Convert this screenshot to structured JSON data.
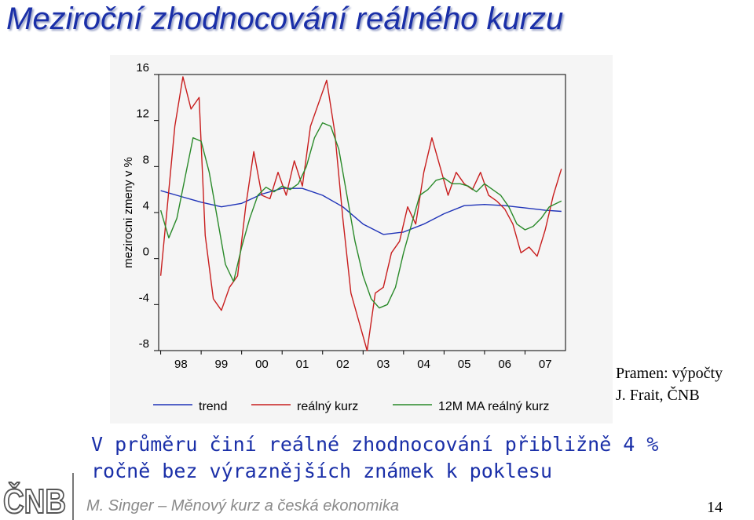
{
  "slide": {
    "title": "Meziroční zhodnocování reálného kurzu",
    "source_line1": "Pramen: výpočty",
    "source_line2": "J. Frait, ČNB",
    "body_line1": "V průměru činí reálné zhodnocování přibližně 4 %",
    "body_line2": "ročně bez výraznějších známek k poklesu",
    "footer": "M. Singer – Měnový kurz a česká ekonomika",
    "page_number": "14",
    "logo_text": "ČNB"
  },
  "chart_data": {
    "type": "line",
    "ylabel": "mezirocni zmeny v %",
    "xlabel": "",
    "title": "",
    "ylim": [
      -8,
      16
    ],
    "xlim": [
      1997.95,
      2008.0
    ],
    "yticks": [
      16,
      12,
      8,
      4,
      0,
      -4,
      -8
    ],
    "xticks": [
      "98",
      "99",
      "00",
      "01",
      "02",
      "03",
      "04",
      "05",
      "06",
      "07"
    ],
    "grid": false,
    "legend_position": "bottom",
    "series": [
      {
        "name": "trend",
        "color": "#1f33b8",
        "x": [
          1998.0,
          1998.5,
          1999.0,
          1999.5,
          2000.0,
          2000.5,
          2001.0,
          2001.5,
          2002.0,
          2002.5,
          2003.0,
          2003.5,
          2004.0,
          2004.5,
          2005.0,
          2005.5,
          2006.0,
          2006.5,
          2007.0,
          2007.5,
          2007.9
        ],
        "values": [
          5.9,
          5.4,
          4.9,
          4.5,
          4.8,
          5.6,
          6.1,
          6.1,
          5.5,
          4.5,
          3.0,
          2.1,
          2.3,
          3.0,
          3.9,
          4.6,
          4.7,
          4.6,
          4.4,
          4.2,
          4.1
        ]
      },
      {
        "name": "reálný kurz",
        "color": "#c81e1e",
        "x": [
          1998.0,
          1998.15,
          1998.35,
          1998.55,
          1998.75,
          1998.95,
          1999.1,
          1999.3,
          1999.5,
          1999.7,
          1999.9,
          2000.1,
          2000.3,
          2000.5,
          2000.7,
          2000.9,
          2001.1,
          2001.3,
          2001.5,
          2001.7,
          2001.9,
          2002.1,
          2002.3,
          2002.5,
          2002.7,
          2002.9,
          2003.1,
          2003.3,
          2003.5,
          2003.7,
          2003.9,
          2004.1,
          2004.3,
          2004.5,
          2004.7,
          2004.9,
          2005.1,
          2005.3,
          2005.5,
          2005.7,
          2005.9,
          2006.1,
          2006.3,
          2006.5,
          2006.7,
          2006.9,
          2007.1,
          2007.3,
          2007.5,
          2007.7,
          2007.9
        ],
        "values": [
          -1.5,
          4.0,
          11.5,
          15.8,
          13.0,
          14.0,
          2.0,
          -3.5,
          -4.5,
          -2.5,
          -1.5,
          4.5,
          9.3,
          5.5,
          5.2,
          7.5,
          5.5,
          8.5,
          6.3,
          11.5,
          13.5,
          15.5,
          11.0,
          3.5,
          -3.0,
          -5.5,
          -8.0,
          -3.0,
          -2.5,
          0.5,
          1.5,
          4.5,
          3.0,
          7.5,
          10.5,
          8.0,
          5.5,
          7.5,
          6.5,
          6.0,
          7.5,
          5.5,
          5.0,
          4.3,
          3.0,
          0.5,
          1.0,
          0.2,
          2.5,
          5.5,
          7.8
        ]
      },
      {
        "name": "12M MA reálný kurz",
        "color": "#2a8a2a",
        "x": [
          1998.0,
          1998.2,
          1998.4,
          1998.6,
          1998.8,
          1999.0,
          1999.2,
          1999.4,
          1999.6,
          1999.8,
          2000.0,
          2000.2,
          2000.4,
          2000.6,
          2000.8,
          2001.0,
          2001.2,
          2001.4,
          2001.6,
          2001.8,
          2002.0,
          2002.2,
          2002.4,
          2002.6,
          2002.8,
          2003.0,
          2003.2,
          2003.4,
          2003.6,
          2003.8,
          2004.0,
          2004.2,
          2004.4,
          2004.6,
          2004.8,
          2005.0,
          2005.2,
          2005.4,
          2005.6,
          2005.8,
          2006.0,
          2006.2,
          2006.4,
          2006.6,
          2006.8,
          2007.0,
          2007.2,
          2007.4,
          2007.6,
          2007.9
        ],
        "values": [
          4.2,
          1.8,
          3.5,
          7.0,
          10.5,
          10.2,
          7.5,
          3.5,
          -0.5,
          -2.0,
          1.0,
          3.5,
          5.5,
          6.2,
          5.8,
          6.3,
          6.0,
          6.5,
          8.0,
          10.5,
          11.8,
          11.5,
          9.5,
          5.5,
          1.5,
          -1.5,
          -3.5,
          -4.3,
          -4.0,
          -2.5,
          0.5,
          3.0,
          5.5,
          6.0,
          6.8,
          7.0,
          6.5,
          6.5,
          6.3,
          5.8,
          6.5,
          6.0,
          5.5,
          4.5,
          3.0,
          2.5,
          2.8,
          3.5,
          4.5,
          5.0
        ]
      }
    ]
  }
}
